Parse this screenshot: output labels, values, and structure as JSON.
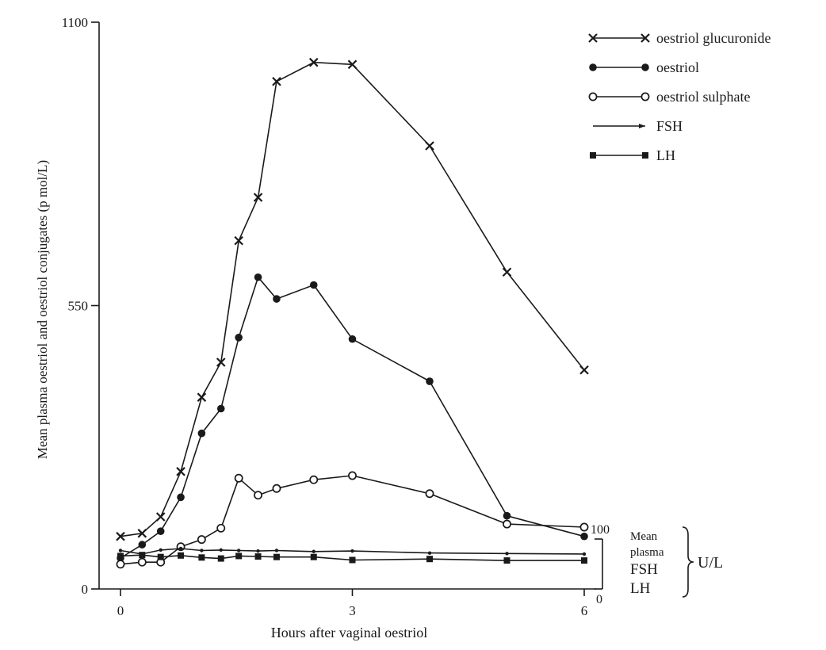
{
  "chart_data": {
    "type": "line",
    "title": "",
    "xlabel": "Hours after vaginal oestriol",
    "ylabel": "Mean plasma oestriol and oestriol conjugates (p mol/L)",
    "xlim": [
      0,
      6
    ],
    "ylim": [
      0,
      1100
    ],
    "x_ticks": [
      "0",
      "3",
      "6"
    ],
    "y_ticks": [
      "0",
      "550",
      "1100"
    ],
    "grid": false,
    "legend": "top-right",
    "secondary_axis": {
      "label_lines": [
        "Mean",
        "plasma",
        "FSH",
        "LH"
      ],
      "unit": "U/L",
      "ticks": [
        "0",
        "100"
      ],
      "range": [
        0,
        100
      ]
    },
    "series": [
      {
        "name": "oestriol glucuronide",
        "marker": "x",
        "axis": "left",
        "x": [
          0,
          0.28,
          0.52,
          0.78,
          1.05,
          1.3,
          1.53,
          1.78,
          2.02,
          2.5,
          3.0,
          4.0,
          5.0,
          6.0
        ],
        "y": [
          102,
          108,
          140,
          228,
          372,
          440,
          676,
          760,
          985,
          1022,
          1018,
          860,
          615,
          425
        ]
      },
      {
        "name": "oestriol",
        "marker": "filled-circle",
        "axis": "left",
        "x": [
          0,
          0.28,
          0.52,
          0.78,
          1.05,
          1.3,
          1.53,
          1.78,
          2.02,
          2.5,
          3.0,
          4.0,
          5.0,
          6.0
        ],
        "y": [
          60,
          86,
          112,
          178,
          302,
          350,
          488,
          605,
          563,
          590,
          485,
          403,
          142,
          102
        ]
      },
      {
        "name": "oestriol sulphate",
        "marker": "open-circle",
        "axis": "left",
        "x": [
          0,
          0.28,
          0.52,
          0.78,
          1.05,
          1.3,
          1.53,
          1.78,
          2.02,
          2.5,
          3.0,
          4.0,
          5.0,
          6.0
        ],
        "y": [
          48,
          52,
          52,
          82,
          96,
          118,
          215,
          182,
          195,
          212,
          220,
          185,
          126,
          120
        ]
      },
      {
        "name": "FSH",
        "marker": "small-dot",
        "axis": "right",
        "x": [
          0,
          0.28,
          0.52,
          0.78,
          1.05,
          1.3,
          1.53,
          1.78,
          2.02,
          2.5,
          3.0,
          4.0,
          5.0,
          6.0
        ],
        "y": [
          77,
          70,
          78,
          81,
          77,
          78,
          77,
          76,
          77,
          75,
          76,
          72,
          71,
          70
        ]
      },
      {
        "name": "LH",
        "marker": "filled-square",
        "axis": "right",
        "x": [
          0,
          0.28,
          0.52,
          0.78,
          1.05,
          1.3,
          1.53,
          1.78,
          2.02,
          2.5,
          3.0,
          4.0,
          5.0,
          6.0
        ],
        "y": [
          66,
          68,
          64,
          67,
          63,
          61,
          66,
          65,
          64,
          64,
          58,
          60,
          57,
          57
        ]
      }
    ]
  }
}
